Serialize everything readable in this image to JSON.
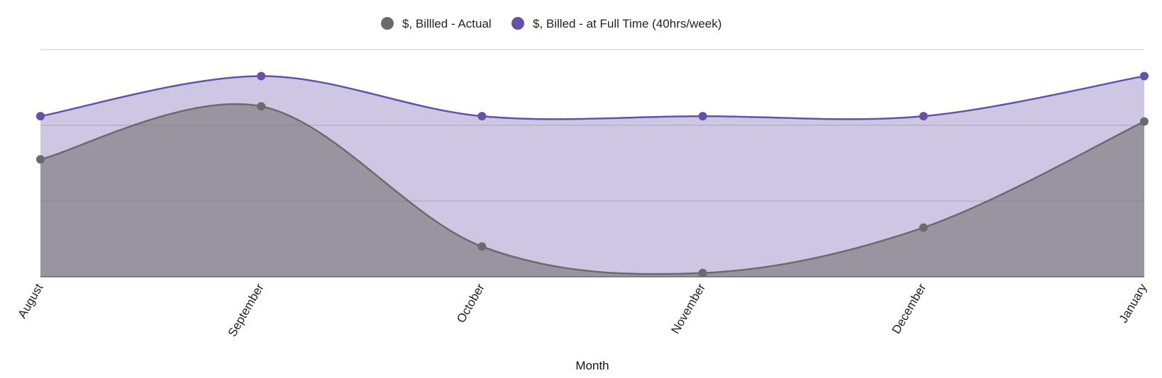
{
  "chart_data": {
    "type": "area",
    "title": "",
    "xlabel": "Month",
    "ylabel": "",
    "categories": [
      "August",
      "September",
      "October",
      "November",
      "December",
      "January"
    ],
    "ylim": [
      0,
      300
    ],
    "grid": true,
    "y_tick_labels_visible": false,
    "legend_position": "top-center",
    "series": [
      {
        "name": "$, Billled - Actual",
        "color": "#6b6b6b",
        "values": [
          155,
          225,
          40,
          5,
          65,
          205
        ]
      },
      {
        "name": "$, Billed - at Full Time (40hrs/week)",
        "color": "#6650a8",
        "values": [
          212,
          265,
          212,
          212,
          212,
          265
        ]
      }
    ]
  }
}
